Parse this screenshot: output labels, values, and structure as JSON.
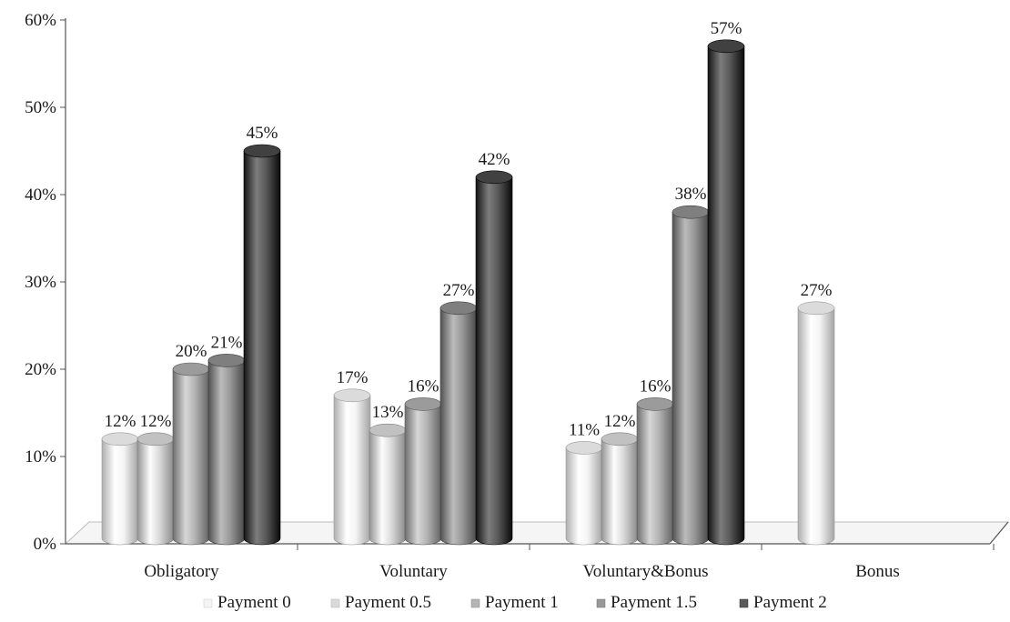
{
  "chart_data": {
    "type": "bar",
    "title": "",
    "xlabel": "",
    "ylabel": "",
    "ylim": [
      0,
      60
    ],
    "y_tick_values": [
      0,
      10,
      20,
      30,
      40,
      50,
      60
    ],
    "y_tick_labels": [
      "0%",
      "10%",
      "20%",
      "30%",
      "40%",
      "50%",
      "60%"
    ],
    "grid": false,
    "legend_position": "bottom",
    "style": "3d-cylinder",
    "categories": [
      "Obligatory",
      "Voluntary",
      "Voluntary&Bonus",
      "Bonus"
    ],
    "series": [
      {
        "name": "Payment 0",
        "color": "#f4f4f4",
        "values": [
          12,
          17,
          11,
          27
        ],
        "labels": [
          "12%",
          "17%",
          "11%",
          "27%"
        ]
      },
      {
        "name": "Payment 0.5",
        "color": "#dadada",
        "values": [
          12,
          13,
          12,
          null
        ],
        "labels": [
          "12%",
          "13%",
          "12%",
          ""
        ]
      },
      {
        "name": "Payment 1",
        "color": "#b4b4b4",
        "values": [
          20,
          16,
          16,
          null
        ],
        "labels": [
          "20%",
          "16%",
          "16%",
          ""
        ]
      },
      {
        "name": "Payment 1.5",
        "color": "#989898",
        "values": [
          21,
          27,
          38,
          null
        ],
        "labels": [
          "21%",
          "27%",
          "38%",
          ""
        ]
      },
      {
        "name": "Payment 2",
        "color": "#5a5a5a",
        "values": [
          45,
          42,
          57,
          null
        ],
        "labels": [
          "45%",
          "42%",
          "57%",
          ""
        ]
      }
    ]
  }
}
